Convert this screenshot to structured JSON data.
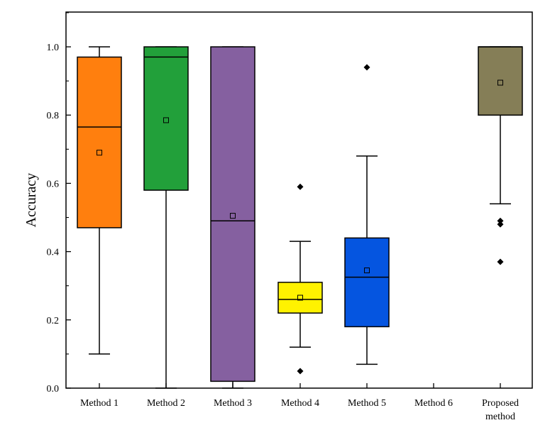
{
  "chart_data": {
    "type": "box",
    "title": "",
    "xlabel": "",
    "ylabel": "Accuracy",
    "ylim": [
      0,
      1.1
    ],
    "yticks": [
      "0.0",
      "0.2",
      "0.4",
      "0.6",
      "0.8",
      "1.0"
    ],
    "ytick_values": [
      0,
      0.2,
      0.4,
      0.6,
      0.8,
      1.0
    ],
    "grid": false,
    "legend": "none",
    "categories": [
      "Method 1",
      "Method 2",
      "Method 3",
      "Method 4",
      "Method 5",
      "Method 6",
      "Proposed method"
    ],
    "boxes": [
      {
        "name": "Method 1",
        "color": "#FF7F0E",
        "whisker_low": 0.1,
        "q1": 0.47,
        "median": 0.765,
        "q3": 0.97,
        "whisker_high": 1.0,
        "mean": 0.69,
        "outliers": []
      },
      {
        "name": "Method 2",
        "color": "#22A03A",
        "whisker_low": 0.0,
        "q1": 0.58,
        "median": 0.97,
        "q3": 1.0,
        "whisker_high": 1.0,
        "mean": 0.785,
        "outliers": []
      },
      {
        "name": "Method 3",
        "color": "#8560A0",
        "whisker_low": 0.0,
        "q1": 0.02,
        "median": 0.49,
        "q3": 1.0,
        "whisker_high": 1.0,
        "mean": 0.505,
        "outliers": []
      },
      {
        "name": "Method 4",
        "color": "#FFF200",
        "whisker_low": 0.12,
        "q1": 0.22,
        "median": 0.26,
        "q3": 0.31,
        "whisker_high": 0.43,
        "mean": 0.265,
        "outliers": [
          0.05,
          0.59
        ]
      },
      {
        "name": "Method 5",
        "color": "#0555E0",
        "whisker_low": 0.07,
        "q1": 0.18,
        "median": 0.325,
        "q3": 0.44,
        "whisker_high": 0.68,
        "mean": 0.345,
        "outliers": [
          0.94
        ]
      },
      {
        "name": "Method 6",
        "color": "#ffffff",
        "empty": true,
        "outliers": []
      },
      {
        "name": "Proposed method",
        "color": "#857E57",
        "whisker_low": 0.54,
        "q1": 0.8,
        "median": 1.0,
        "q3": 1.0,
        "whisker_high": 1.0,
        "mean": 0.895,
        "outliers": [
          0.37,
          0.48,
          0.49
        ]
      }
    ]
  }
}
